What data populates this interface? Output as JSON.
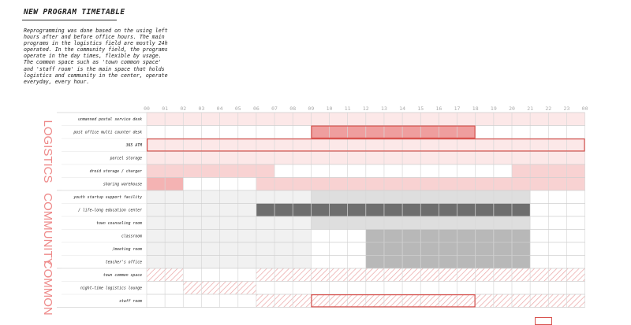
{
  "title": "NEW PROGRAM TIMETABLE",
  "description": [
    "Reprogramming was done based on the using left",
    "hours after and before office hours. The main",
    "programs in the logistics field are mostly 24h",
    "operated. In the community field, the programs",
    "operate in the day times, flexible by usage.",
    "The common space such as 'town common space'",
    "and 'staff room' is the main space that holds",
    "logistics and community in the center, operate",
    "everyday, every hour."
  ],
  "hours": [
    "00",
    "01",
    "02",
    "03",
    "04",
    "05",
    "06",
    "07",
    "08",
    "09",
    "10",
    "11",
    "12",
    "13",
    "14",
    "15",
    "16",
    "17",
    "18",
    "19",
    "20",
    "21",
    "22",
    "23",
    "00"
  ],
  "colors": {
    "logistics_light": "#fce8e8",
    "logistics_mid": "#f8d2d2",
    "logistics_strong": "#f4b3b3",
    "logistics_dark": "#ef9e9e",
    "accent_red": "#d9534f",
    "community_light": "#f1f1f1",
    "community_mid": "#dedede",
    "community_strong": "#b8b8b8",
    "community_dark": "#6e6e6e",
    "hatch": "#eaa3a3",
    "grid_line": "#ffffff"
  },
  "groups": [
    {
      "label": "LOGISTICS",
      "rows": [
        0,
        5
      ]
    },
    {
      "label": "COMMUNITY",
      "rows": [
        6,
        11
      ]
    },
    {
      "label": "COMMON",
      "rows": [
        12,
        14
      ]
    }
  ],
  "rows": [
    {
      "label": "unmanned postal service desk",
      "segments": [
        {
          "from": 0,
          "to": 24,
          "fill": "logistics_light"
        }
      ]
    },
    {
      "label": "post office multi counter desk",
      "segments": [
        {
          "from": 9,
          "to": 18,
          "fill": "logistics_dark"
        }
      ],
      "outlines": [
        {
          "from": 9,
          "to": 18
        }
      ]
    },
    {
      "label": "365 ATM",
      "segments": [
        {
          "from": 0,
          "to": 24,
          "fill": "logistics_light"
        }
      ],
      "outlines": [
        {
          "from": 0,
          "to": 24
        }
      ]
    },
    {
      "label": "parcel storage",
      "segments": [
        {
          "from": 0,
          "to": 24,
          "fill": "logistics_light"
        }
      ]
    },
    {
      "label": "droid storage / charger",
      "segments": [
        {
          "from": 0,
          "to": 7,
          "fill": "logistics_mid"
        },
        {
          "from": 20,
          "to": 24,
          "fill": "logistics_mid"
        }
      ]
    },
    {
      "label": "sharing warehouse",
      "segments": [
        {
          "from": 0,
          "to": 2,
          "fill": "logistics_strong"
        },
        {
          "from": 6,
          "to": 24,
          "fill": "logistics_mid"
        }
      ]
    },
    {
      "label": "youth startup support facility",
      "segments": [
        {
          "from": 0,
          "to": 9,
          "fill": "community_light"
        },
        {
          "from": 9,
          "to": 21,
          "fill": "community_mid"
        }
      ]
    },
    {
      "label": "/ life-long education center",
      "segments": [
        {
          "from": 0,
          "to": 6,
          "fill": "community_light"
        },
        {
          "from": 6,
          "to": 21,
          "fill": "community_dark"
        }
      ]
    },
    {
      "label": "town counseling room",
      "segments": [
        {
          "from": 0,
          "to": 9,
          "fill": "community_light"
        },
        {
          "from": 9,
          "to": 21,
          "fill": "community_mid"
        }
      ]
    },
    {
      "label": "classroom",
      "segments": [
        {
          "from": 0,
          "to": 9,
          "fill": "community_light"
        },
        {
          "from": 12,
          "to": 21,
          "fill": "community_strong"
        }
      ]
    },
    {
      "label": "/meeting room",
      "segments": [
        {
          "from": 0,
          "to": 9,
          "fill": "community_light"
        },
        {
          "from": 12,
          "to": 21,
          "fill": "community_strong"
        }
      ]
    },
    {
      "label": "teacher's office",
      "segments": [
        {
          "from": 0,
          "to": 9,
          "fill": "community_light"
        },
        {
          "from": 12,
          "to": 21,
          "fill": "community_strong"
        }
      ]
    },
    {
      "label": "town common space",
      "segments": [
        {
          "from": 0,
          "to": 2,
          "fill": "hatch"
        },
        {
          "from": 6,
          "to": 24,
          "fill": "hatch"
        }
      ]
    },
    {
      "label": "night-time logistics lounge",
      "segments": [
        {
          "from": 2,
          "to": 6,
          "fill": "hatch"
        }
      ]
    },
    {
      "label": "staff room",
      "segments": [
        {
          "from": 6,
          "to": 24,
          "fill": "hatch"
        }
      ],
      "outlines": [
        {
          "from": 9,
          "to": 18
        }
      ]
    }
  ]
}
